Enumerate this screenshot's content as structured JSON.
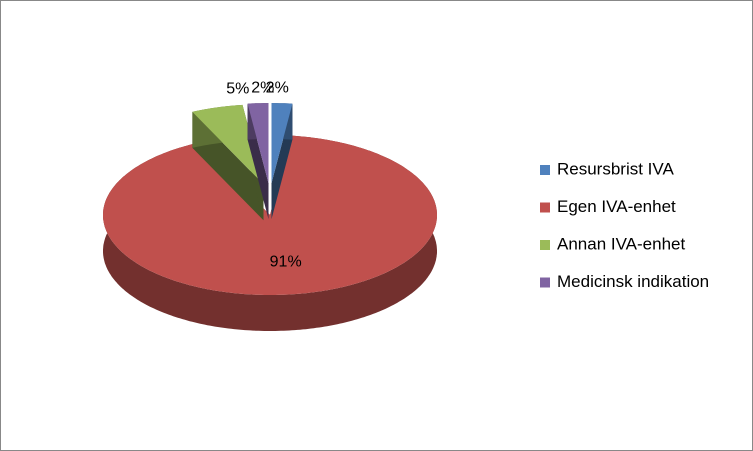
{
  "chart_data": {
    "type": "pie3d",
    "categories": [
      "Resursbrist IVA",
      "Egen IVA-enhet",
      "Annan IVA-enhet",
      "Medicinsk indikation"
    ],
    "values": [
      2,
      91,
      5,
      2
    ],
    "value_labels": [
      "2%",
      "91%",
      "5%",
      "2%"
    ],
    "colors": [
      "#4f81bd",
      "#c0504d",
      "#9bbb59",
      "#8064a2"
    ],
    "legend": "right"
  }
}
